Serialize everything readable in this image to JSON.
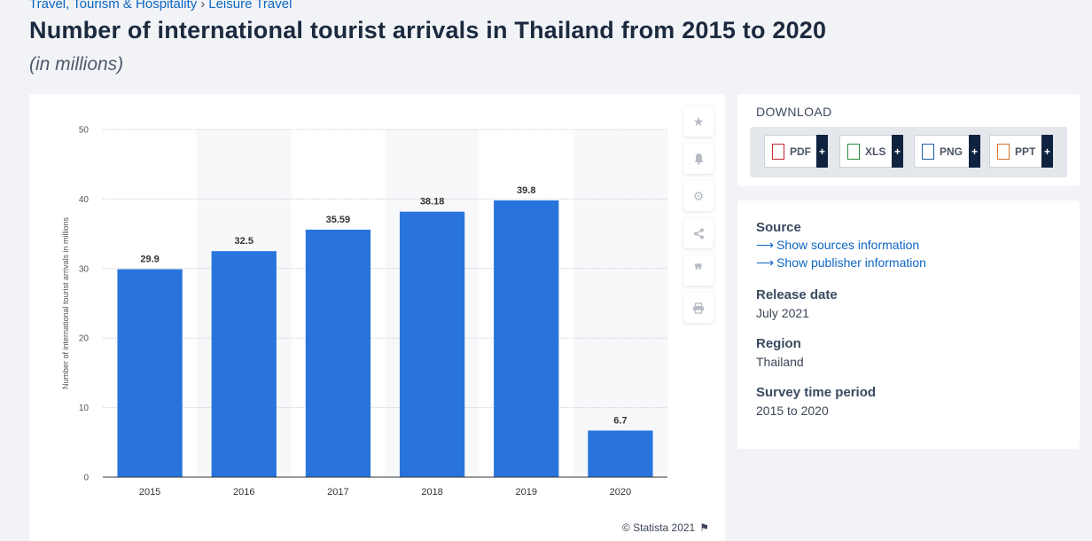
{
  "breadcrumb": {
    "category": "Travel, Tourism & Hospitality",
    "separator": "›",
    "subcategory": "Leisure Travel"
  },
  "header": {
    "title": "Number of international tourist arrivals in Thailand from 2015 to 2020",
    "subtitle": "(in millions)"
  },
  "chart_data": {
    "type": "bar",
    "categories": [
      "2015",
      "2016",
      "2017",
      "2018",
      "2019",
      "2020"
    ],
    "values": [
      29.9,
      32.5,
      35.59,
      38.18,
      39.8,
      6.7
    ],
    "value_labels": [
      "29.9",
      "32.5",
      "35.59",
      "38.18",
      "39.8",
      "6.7"
    ],
    "ylabel": "Number of international tourist arrivals in millions",
    "ylim": [
      0,
      50
    ],
    "yticks": [
      0,
      10,
      20,
      30,
      40,
      50
    ],
    "bar_color": "#2874dc",
    "grid": true
  },
  "toolbar": {
    "icons": [
      "star-icon",
      "bell-icon",
      "gear-icon",
      "share-icon",
      "quote-icon",
      "print-icon"
    ]
  },
  "copyright": {
    "text": "© Statista 2021"
  },
  "download": {
    "title": "DOWNLOAD",
    "buttons": [
      {
        "label": "PDF",
        "color": "#c0262d"
      },
      {
        "label": "XLS",
        "color": "#2e8b3a"
      },
      {
        "label": "PNG",
        "color": "#1f5fa8"
      },
      {
        "label": "PPT",
        "color": "#d8702a"
      }
    ],
    "plus": "+"
  },
  "info": {
    "source_label": "Source",
    "source_link": "Show sources information",
    "publisher_link": "Show publisher information",
    "release_label": "Release date",
    "release_value": "July 2021",
    "region_label": "Region",
    "region_value": "Thailand",
    "survey_label": "Survey time period",
    "survey_value": "2015 to 2020"
  }
}
